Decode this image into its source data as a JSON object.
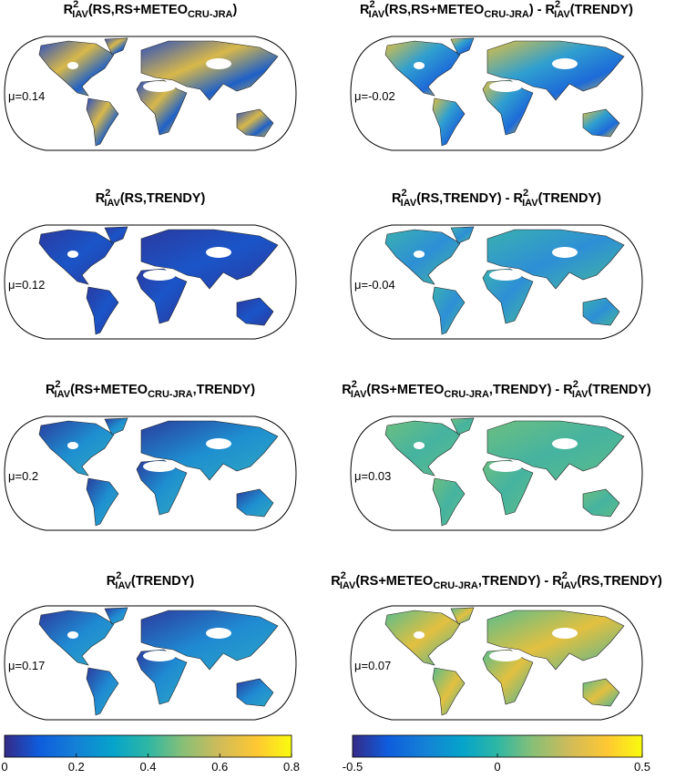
{
  "panels": [
    {
      "title": [
        {
          "text": "R"
        },
        {
          "text": "2",
          "pos": "sup"
        },
        {
          "text": "IAV",
          "pos": "sub"
        },
        {
          "text": "(RS,RS+METEO"
        },
        {
          "text": "CRU-JRA",
          "pos": "sub"
        },
        {
          "text": ")"
        }
      ],
      "mu": "μ=0.14"
    },
    {
      "title": [
        {
          "text": "R"
        },
        {
          "text": "2",
          "pos": "sup"
        },
        {
          "text": "IAV",
          "pos": "sub"
        },
        {
          "text": "(RS,RS+METEO"
        },
        {
          "text": "CRU-JRA",
          "pos": "sub"
        },
        {
          "text": ") - R"
        },
        {
          "text": "2",
          "pos": "sup"
        },
        {
          "text": "IAV",
          "pos": "sub"
        },
        {
          "text": "(TRENDY)"
        }
      ],
      "mu": "μ=-0.02"
    },
    {
      "title": [
        {
          "text": "R"
        },
        {
          "text": "2",
          "pos": "sup"
        },
        {
          "text": "IAV",
          "pos": "sub"
        },
        {
          "text": "(RS,TRENDY)"
        }
      ],
      "mu": "μ=0.12"
    },
    {
      "title": [
        {
          "text": "R"
        },
        {
          "text": "2",
          "pos": "sup"
        },
        {
          "text": "IAV",
          "pos": "sub"
        },
        {
          "text": "(RS,TRENDY) - R"
        },
        {
          "text": "2",
          "pos": "sup"
        },
        {
          "text": "IAV",
          "pos": "sub"
        },
        {
          "text": "(TRENDY)"
        }
      ],
      "mu": "μ=-0.04"
    },
    {
      "title": [
        {
          "text": "R"
        },
        {
          "text": "2",
          "pos": "sup"
        },
        {
          "text": "IAV",
          "pos": "sub"
        },
        {
          "text": "(RS+METEO"
        },
        {
          "text": "CRU-JRA",
          "pos": "sub"
        },
        {
          "text": ",TRENDY)"
        }
      ],
      "mu": "μ=0.2"
    },
    {
      "title": [
        {
          "text": "R"
        },
        {
          "text": "2",
          "pos": "sup"
        },
        {
          "text": "IAV",
          "pos": "sub"
        },
        {
          "text": "(RS+METEO"
        },
        {
          "text": "CRU-JRA",
          "pos": "sub"
        },
        {
          "text": ",TRENDY) - R"
        },
        {
          "text": "2",
          "pos": "sup"
        },
        {
          "text": "IAV",
          "pos": "sub"
        },
        {
          "text": "(TRENDY)"
        }
      ],
      "mu": "μ=0.03"
    },
    {
      "title": [
        {
          "text": "R"
        },
        {
          "text": "2",
          "pos": "sup"
        },
        {
          "text": "IAV",
          "pos": "sub"
        },
        {
          "text": "(TRENDY)"
        }
      ],
      "mu": "μ=0.17"
    },
    {
      "title": [
        {
          "text": "R"
        },
        {
          "text": "2",
          "pos": "sup"
        },
        {
          "text": "IAV",
          "pos": "sub"
        },
        {
          "text": "(RS+METEO"
        },
        {
          "text": "CRU-JRA",
          "pos": "sub"
        },
        {
          "text": ",TRENDY) - R"
        },
        {
          "text": "2",
          "pos": "sup"
        },
        {
          "text": "IAV",
          "pos": "sub"
        },
        {
          "text": "(RS,TRENDY)"
        }
      ],
      "mu": "μ=0.07"
    }
  ],
  "colorbars": [
    {
      "lim": [
        0,
        0.8
      ],
      "ticks": [
        0,
        0.2,
        0.4,
        0.6,
        0.8
      ]
    },
    {
      "lim": [
        -0.5,
        0.5
      ],
      "ticks": [
        -0.5,
        0,
        0.5
      ]
    }
  ]
}
